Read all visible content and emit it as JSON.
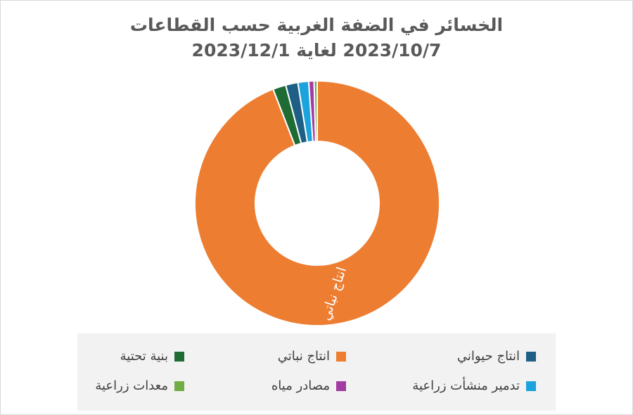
{
  "chart_data": {
    "type": "pie",
    "donut": true,
    "title_lines": [
      "الخسائر في الضفة الغربية حسب القطاعات",
      "2023/10/7 لغاية 2023/12/1"
    ],
    "categories": [
      "انتاج نباتي",
      "بنية تحتية",
      "انتاج حيواني",
      "تدمير منشأت زراعية",
      "مصادر مياه",
      "معدات زراعية"
    ],
    "values": [
      93.0,
      1.7,
      1.6,
      1.4,
      0.7,
      0.4
    ],
    "colors": [
      "#ed7d31",
      "#1e6b34",
      "#1f5f86",
      "#1aa3dc",
      "#a23ca0",
      "#70ad47"
    ],
    "data_labels": [
      "انتاج نباتي",
      "",
      "",
      "",
      "",
      ""
    ],
    "legend_position": "bottom",
    "legend_items": [
      {
        "label": "انتاج حيواني",
        "color": "#1f5f86"
      },
      {
        "label": "انتاج نباتي",
        "color": "#ed7d31"
      },
      {
        "label": "بنية تحتية",
        "color": "#1e6b34"
      },
      {
        "label": "تدمير منشأت زراعية",
        "color": "#1aa3dc"
      },
      {
        "label": "مصادر مياه",
        "color": "#a23ca0"
      },
      {
        "label": "معدات زراعية",
        "color": "#70ad47"
      }
    ]
  }
}
